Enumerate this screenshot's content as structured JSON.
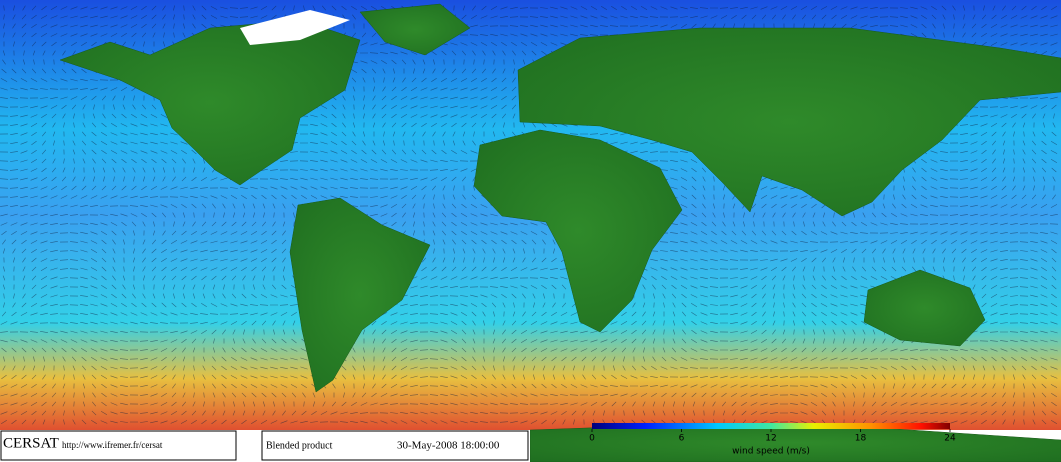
{
  "footer": {
    "logo": "CERSAT",
    "url": "http://www.ifremer.fr/cersat",
    "product": "Blended product",
    "timestamp": "30-May-2008 18:00:00"
  },
  "colorbar": {
    "range": [
      0,
      24
    ],
    "ticks": [
      0,
      6,
      12,
      18,
      24
    ],
    "label": "wind speed (m/s)"
  }
}
